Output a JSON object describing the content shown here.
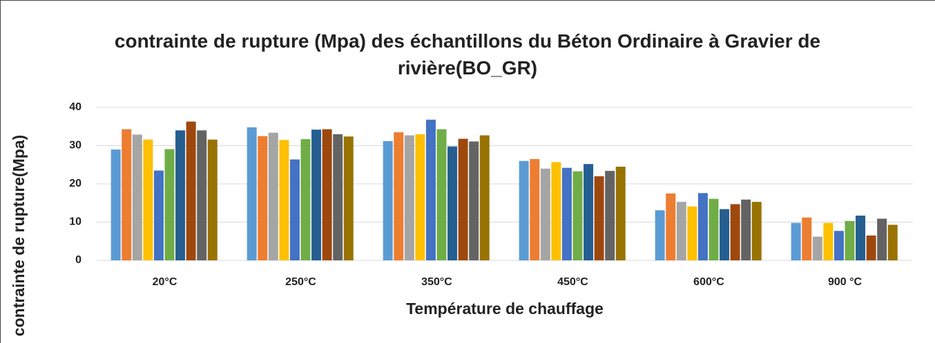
{
  "chart_data": {
    "type": "bar",
    "title": "contrainte de rupture (Mpa) des échantillons du Béton Ordinaire à Gravier de rivière(BO_GR)",
    "xlabel": "Température de chauffage",
    "ylabel": "contrainte de rupture(Mpa)",
    "categories": [
      "20°C",
      "250°C",
      "350°C",
      "450°C",
      "600°C",
      "900 °C"
    ],
    "series": [
      {
        "color": "#5b9bd5",
        "values": [
          29,
          34.8,
          31.2,
          26,
          13.1,
          9.8
        ]
      },
      {
        "color": "#ed7d31",
        "values": [
          34.3,
          32.5,
          33.5,
          26.5,
          17.5,
          11.2
        ]
      },
      {
        "color": "#a5a5a5",
        "values": [
          32.9,
          33.4,
          32.7,
          24,
          15.3,
          6.2
        ]
      },
      {
        "color": "#ffc000",
        "values": [
          31.6,
          31.5,
          33,
          25.7,
          14.1,
          9.8
        ]
      },
      {
        "color": "#4472c4",
        "values": [
          23.5,
          26.4,
          36.8,
          24.2,
          17.6,
          7.7
        ]
      },
      {
        "color": "#70ad47",
        "values": [
          29.1,
          31.7,
          34.3,
          23.3,
          16.1,
          10.3
        ]
      },
      {
        "color": "#255e91",
        "values": [
          34,
          34.2,
          29.8,
          25.2,
          13.4,
          11.7
        ]
      },
      {
        "color": "#9e480e",
        "values": [
          36.3,
          34.3,
          31.8,
          22,
          14.7,
          6.5
        ]
      },
      {
        "color": "#636363",
        "values": [
          34,
          33,
          31.1,
          23.4,
          15.9,
          10.9
        ]
      },
      {
        "color": "#997300",
        "values": [
          31.6,
          32.4,
          32.7,
          24.5,
          15.3,
          9.3
        ]
      }
    ],
    "ylim": [
      0,
      40
    ],
    "yticks": [
      0,
      10,
      20,
      30,
      40
    ],
    "grid": true
  }
}
